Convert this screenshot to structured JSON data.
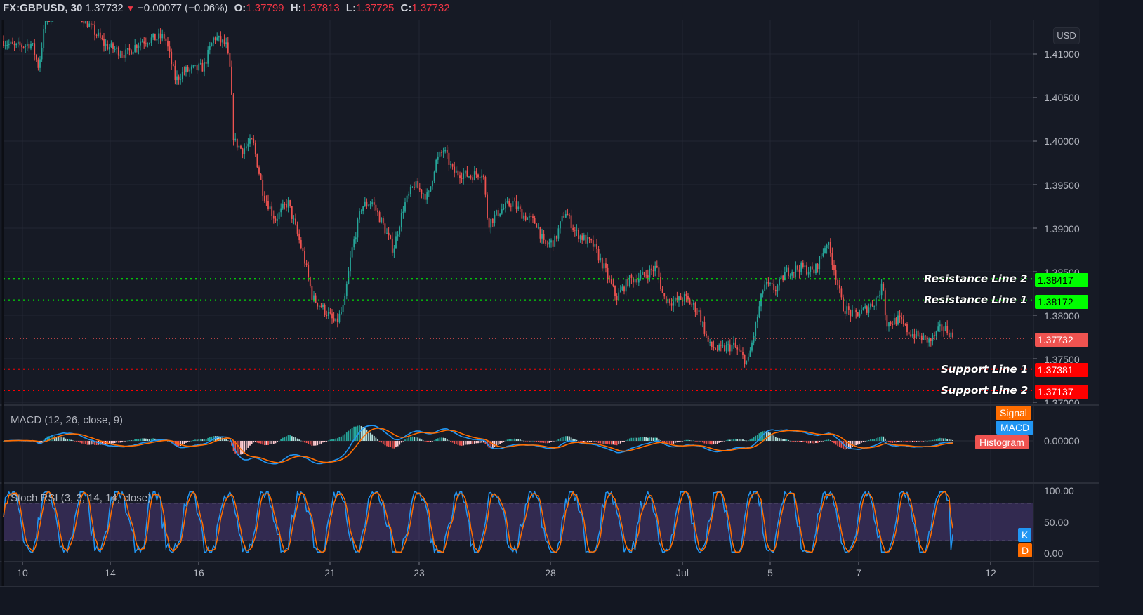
{
  "header": {
    "symbol": "FX:GBPUSD, 30",
    "last": "1.37732",
    "change_icon": "down-triangle-icon",
    "change": "−0.00077 (−0.06%)",
    "open_label": "O:",
    "open": "1.37799",
    "high_label": "H:",
    "high": "1.37813",
    "low_label": "L:",
    "low": "1.37725",
    "close_label": "C:",
    "close": "1.37732"
  },
  "price_axis": {
    "currency_button": "USD",
    "ticks": [
      "1.41000",
      "1.40500",
      "1.40000",
      "1.39500",
      "1.39000",
      "1.38500",
      "1.38000",
      "1.37500",
      "1.37000"
    ],
    "current_price_tag": "1.37732"
  },
  "levels": [
    {
      "label": "Resistance Line 2",
      "value": "1.38417",
      "color": "#00ff00",
      "text_color": "#000000"
    },
    {
      "label": "Resistance Line 1",
      "value": "1.38172",
      "color": "#00ff00",
      "text_color": "#000000"
    },
    {
      "label": "Support Line 1",
      "value": "1.37381",
      "color": "#ff0000",
      "text_color": "#ffffff"
    },
    {
      "label": "Support Line 2",
      "value": "1.37137",
      "color": "#ff0000",
      "text_color": "#ffffff"
    }
  ],
  "macd": {
    "title": "MACD (12, 26, close, 9)",
    "legend": [
      "Signal",
      "MACD",
      "Histogram"
    ],
    "zero_label": "0.00000",
    "colors": {
      "signal": "#ff6d00",
      "macd": "#2196f3",
      "histogram": "#ef5350"
    }
  },
  "stoch_rsi": {
    "title": "Stoch RSI (3, 3, 14, 14, close)",
    "legend": [
      "K",
      "D"
    ],
    "ticks": [
      "100.00",
      "50.00",
      "0.00"
    ],
    "colors": {
      "k": "#2196f3",
      "d": "#ff6d00",
      "band": "#7e57c2"
    }
  },
  "time_axis": {
    "labels": [
      "10",
      "14",
      "16",
      "21",
      "23",
      "28",
      "Jul",
      "5",
      "7",
      "12"
    ]
  },
  "colors": {
    "up": "#26a69a",
    "down": "#ef5350",
    "background": "#161a25",
    "grid": "#232733"
  },
  "chart_data": [
    {
      "type": "candlestick",
      "title": "FX:GBPUSD, 30",
      "xlabel": "",
      "ylabel": "USD",
      "x_ticks": [
        "10",
        "14",
        "16",
        "21",
        "23",
        "28",
        "Jul",
        "5",
        "7",
        "12"
      ],
      "ylim": [
        1.3695,
        1.414
      ],
      "y_ticks": [
        1.41,
        1.405,
        1.4,
        1.395,
        1.39,
        1.385,
        1.38,
        1.375,
        1.37
      ],
      "approx_close_path": [
        {
          "x": "10",
          "y": 1.411
        },
        {
          "x": "11",
          "y": 1.4135
        },
        {
          "x": "14",
          "y": 1.412
        },
        {
          "x": "15",
          "y": 1.4085
        },
        {
          "x": "16",
          "y": 1.412
        },
        {
          "x": "17",
          "y": 1.399
        },
        {
          "x": "18",
          "y": 1.39
        },
        {
          "x": "20",
          "y": 1.382
        },
        {
          "x": "21",
          "y": 1.39
        },
        {
          "x": "22",
          "y": 1.3935
        },
        {
          "x": "23",
          "y": 1.3975
        },
        {
          "x": "24",
          "y": 1.396
        },
        {
          "x": "25",
          "y": 1.3915
        },
        {
          "x": "28",
          "y": 1.393
        },
        {
          "x": "29",
          "y": 1.387
        },
        {
          "x": "30",
          "y": 1.384
        },
        {
          "x": "Jul",
          "y": 1.381
        },
        {
          "x": "2",
          "y": 1.376
        },
        {
          "x": "4",
          "y": 1.375
        },
        {
          "x": "5",
          "y": 1.384
        },
        {
          "x": "6",
          "y": 1.3895
        },
        {
          "x": "7",
          "y": 1.38
        },
        {
          "x": "8",
          "y": 1.379
        },
        {
          "x": "9",
          "y": 1.3773
        }
      ],
      "last": 1.37732,
      "annotations": [
        {
          "label": "Resistance Line 2",
          "y": 1.38417
        },
        {
          "label": "Resistance Line 1",
          "y": 1.38172
        },
        {
          "label": "Support Line 1",
          "y": 1.37381
        },
        {
          "label": "Support Line 2",
          "y": 1.37137
        }
      ]
    },
    {
      "type": "line",
      "title": "MACD (12, 26, close, 9)",
      "series": [
        {
          "name": "MACD",
          "color": "#2196f3"
        },
        {
          "name": "Signal",
          "color": "#ff6d00"
        },
        {
          "name": "Histogram",
          "color": "#ef5350"
        }
      ],
      "y_ticks": [
        0.0
      ]
    },
    {
      "type": "line",
      "title": "Stoch RSI (3, 3, 14, 14, close)",
      "series": [
        {
          "name": "K",
          "color": "#2196f3"
        },
        {
          "name": "D",
          "color": "#ff6d00"
        }
      ],
      "ylim": [
        0,
        100
      ],
      "y_ticks": [
        100,
        50,
        0
      ],
      "bands": [
        20,
        80
      ]
    }
  ]
}
